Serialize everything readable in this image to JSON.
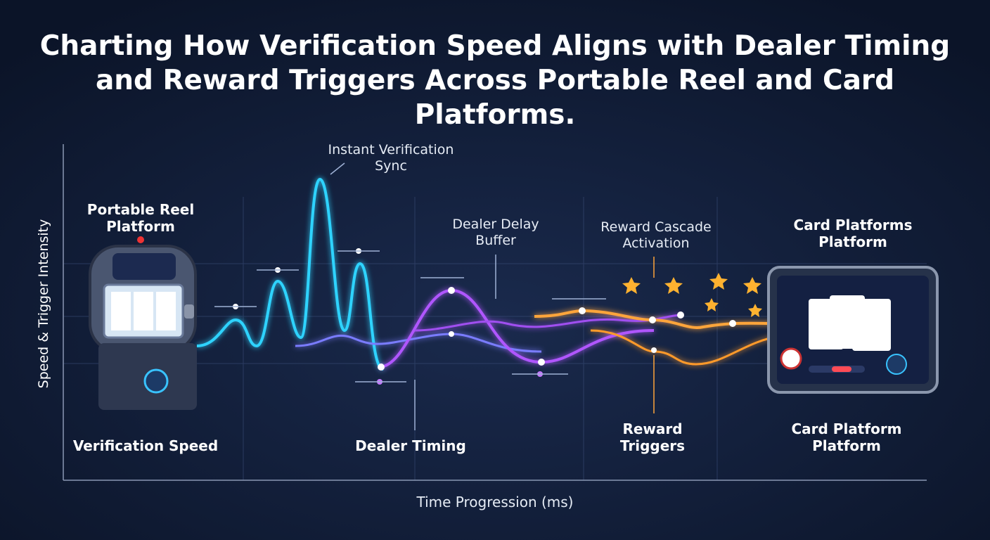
{
  "title": "Charting How Verification Speed Aligns with Dealer Timing and Reward Triggers Across Portable Reel and Card Platforms.",
  "y_axis_label": "Speed & Trigger Intensity",
  "x_axis_label": "Time Progression (ms)",
  "annotations": [
    "Instant Verification Sync",
    "Dealer Delay Buffer",
    "Reward Cascade Activation"
  ],
  "platforms": [
    "Portable Reel Platform",
    "Card Platforms Platform"
  ],
  "series_labels": [
    "Verification Speed",
    "Dealer Timing",
    "Reward Triggers",
    "Card Platform Platform"
  ]
}
